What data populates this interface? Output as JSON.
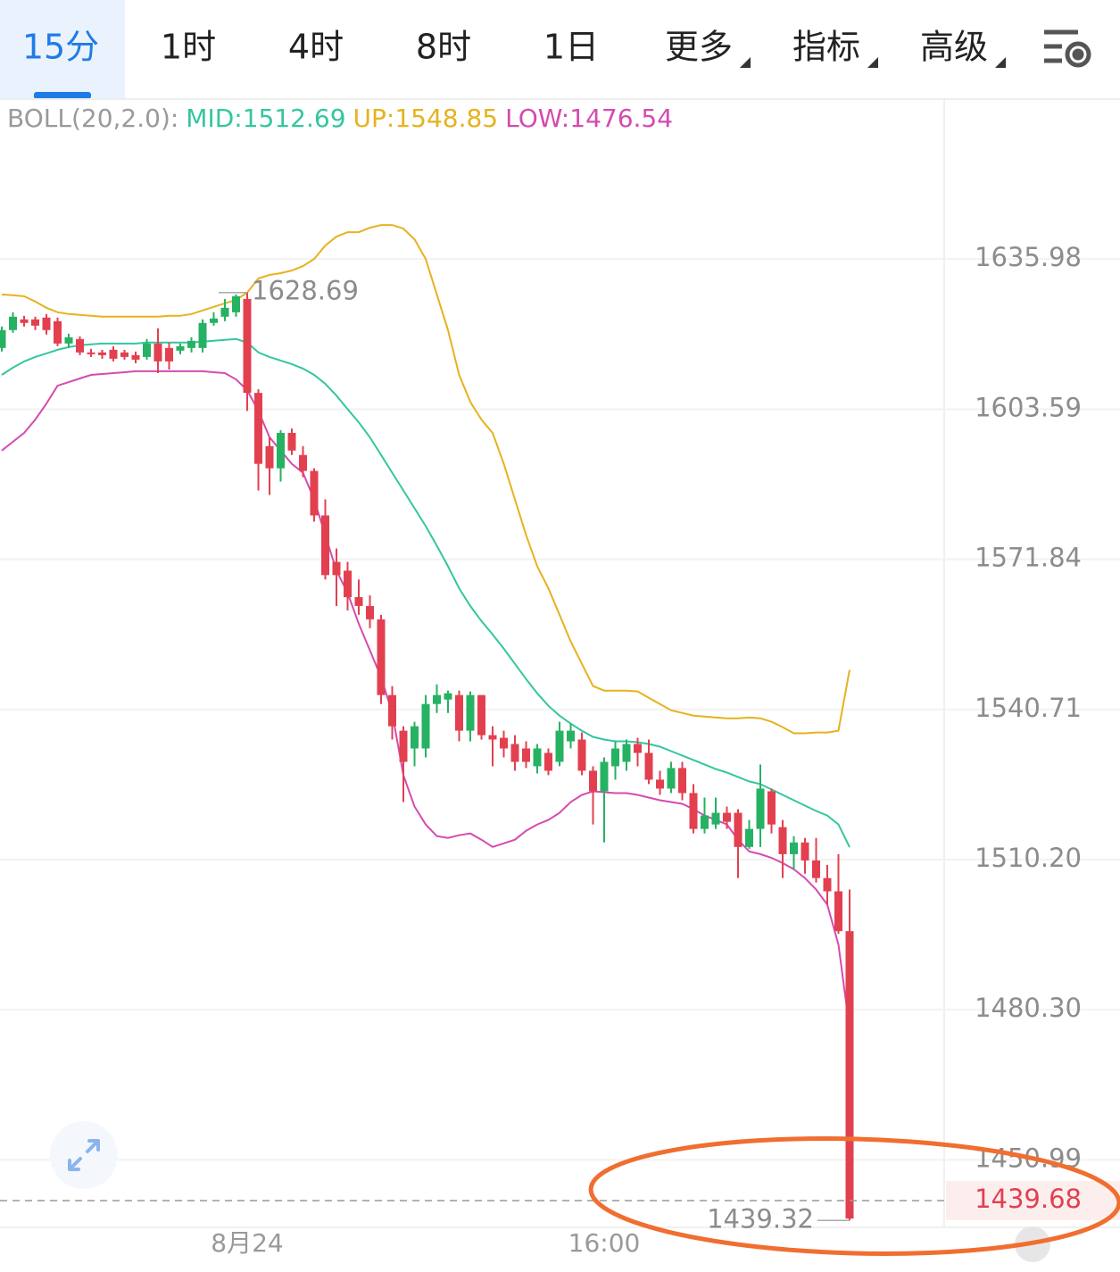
{
  "toolbar": {
    "tabs": [
      {
        "label": "15分"
      },
      {
        "label": "1时"
      },
      {
        "label": "4时"
      },
      {
        "label": "8时"
      },
      {
        "label": "1日"
      },
      {
        "label": "更多",
        "menu": true
      },
      {
        "label": "指标",
        "menu": true
      },
      {
        "label": "高级",
        "menu": true
      }
    ],
    "active": 0
  },
  "chart_data": {
    "type": "candlestick",
    "log": true,
    "grid": true,
    "ylim": [
      1438,
      1671
    ],
    "yticks": [
      1635.98,
      1603.59,
      1571.84,
      1540.71,
      {
        "value": 1510.2,
        "label": "1510.20"
      },
      {
        "value": 1480.3,
        "label": "1480.30"
      },
      1450.99
    ],
    "categories": [
      null,
      null,
      null,
      null,
      null,
      null,
      null,
      null,
      null,
      null,
      null,
      null,
      null,
      null,
      null,
      null,
      null,
      null,
      null,
      null,
      null,
      null,
      "8月24",
      null,
      null,
      null,
      null,
      null,
      null,
      null,
      null,
      null,
      null,
      null,
      null,
      null,
      null,
      null,
      null,
      null,
      null,
      null,
      null,
      null,
      null,
      null,
      null,
      null,
      null,
      null,
      null,
      null,
      null,
      null,
      "16:00",
      null,
      null,
      null,
      null,
      null,
      null,
      null,
      null,
      null,
      null,
      null,
      null,
      null,
      null,
      null,
      null,
      null,
      null,
      null,
      null,
      null,
      null
    ],
    "up_color": "#26b263",
    "down_color": "#e2404f",
    "open": [
      1616.7,
      1620.56,
      1622.87,
      1622.87,
      1623.26,
      1622.48,
      1617.66,
      1618.63,
      1615.74,
      1615.74,
      1616.31,
      1615.74,
      1615.16,
      1614.77,
      1617.66,
      1616.7,
      1616.12,
      1616.7,
      1616.7,
      1622.1,
      1623.45,
      1624.41,
      1627.3,
      1607.06,
      1595.7,
      1591.0,
      1598.52,
      1593.82,
      1590.44,
      1581.04,
      1571.29,
      1569.45,
      1563.92,
      1562.08,
      1559.31,
      1543.66,
      1536.35,
      1532.72,
      1532.72,
      1541.82,
      1542.74,
      1543.66,
      1536.35,
      1543.66,
      1535.44,
      1534.9,
      1533.63,
      1532.72,
      1529.09,
      1531.81,
      1529.99,
      1534.17,
      1534.54,
      1528.18,
      1524.0,
      1529.09,
      1529.99,
      1533.63,
      1531.81,
      1526.36,
      1524.55,
      1528.73,
      1523.64,
      1516.38,
      1517.28,
      1519.64,
      1519.64,
      1512.74,
      1516.38,
      1524.0,
      1516.74,
      1511.29,
      1513.65,
      1510.02,
      1506.49,
      1503.83,
      1495.87
    ],
    "high": [
      1621.33,
      1624.41,
      1623.64,
      1623.45,
      1624.03,
      1623.26,
      1619.79,
      1619.21,
      1616.51,
      1616.31,
      1617.09,
      1616.31,
      1615.93,
      1618.63,
      1620.94,
      1617.85,
      1617.66,
      1619.02,
      1622.87,
      1624.41,
      1627.3,
      1628.27,
      1628.69,
      1607.83,
      1597.58,
      1599.08,
      1599.46,
      1595.7,
      1591.0,
      1584.42,
      1574.09,
      1571.29,
      1567.6,
      1564.29,
      1560.24,
      1545.5,
      1537.26,
      1538.17,
      1543.66,
      1545.87,
      1544.58,
      1544.58,
      1544.4,
      1543.66,
      1537.26,
      1536.35,
      1535.44,
      1534.17,
      1533.63,
      1532.72,
      1538.17,
      1537.8,
      1535.99,
      1529.09,
      1530.9,
      1534.17,
      1534.54,
      1534.9,
      1534.54,
      1528.18,
      1529.99,
      1529.99,
      1525.46,
      1522.73,
      1522.73,
      1520.91,
      1520.37,
      1518.19,
      1529.45,
      1524.55,
      1518.19,
      1514.92,
      1514.56,
      1514.56,
      1509.14,
      1511.29,
      1504.19
    ],
    "low": [
      1615.93,
      1619.98,
      1621.33,
      1620.56,
      1619.59,
      1617.09,
      1616.7,
      1615.16,
      1614.77,
      1614.39,
      1613.81,
      1614.19,
      1613.42,
      1614.19,
      1611.3,
      1612.07,
      1615.35,
      1615.74,
      1615.74,
      1621.52,
      1622.48,
      1623.45,
      1603.21,
      1586.3,
      1585.36,
      1588.18,
      1593.82,
      1589.12,
      1579.73,
      1567.6,
      1562.08,
      1561.16,
      1560.24,
      1557.47,
      1541.82,
      1534.54,
      1521.82,
      1529.09,
      1530.9,
      1539.98,
      1539.98,
      1534.17,
      1534.17,
      1534.54,
      1529.09,
      1530.9,
      1528.18,
      1528.73,
      1527.63,
      1527.27,
      1529.09,
      1532.72,
      1527.27,
      1517.28,
      1513.65,
      1526.36,
      1528.18,
      1529.09,
      1525.46,
      1523.27,
      1523.64,
      1522.18,
      1515.47,
      1515.47,
      1516.38,
      1516.38,
      1506.49,
      1512.38,
      1512.74,
      1515.47,
      1506.49,
      1508.25,
      1507.37,
      1505.6,
      1501.18,
      1495.34,
      1439.32
    ],
    "close": [
      1620.56,
      1623.45,
      1622.1,
      1621.52,
      1620.56,
      1617.66,
      1619.02,
      1615.74,
      1615.35,
      1615.16,
      1614.39,
      1614.77,
      1614.19,
      1617.66,
      1613.81,
      1613.81,
      1617.09,
      1618.24,
      1622.1,
      1623.06,
      1625.38,
      1627.88,
      1607.06,
      1591.94,
      1591.0,
      1598.52,
      1594.76,
      1590.44,
      1581.04,
      1568.52,
      1568.52,
      1563.92,
      1562.08,
      1559.31,
      1543.66,
      1537.26,
      1529.99,
      1537.26,
      1541.82,
      1543.66,
      1544.03,
      1536.35,
      1543.66,
      1535.44,
      1534.54,
      1532.72,
      1529.99,
      1529.99,
      1532.72,
      1528.18,
      1536.35,
      1536.35,
      1528.18,
      1524.0,
      1529.99,
      1532.72,
      1533.63,
      1531.81,
      1526.36,
      1524.55,
      1528.73,
      1523.64,
      1516.38,
      1519.1,
      1519.64,
      1517.82,
      1512.74,
      1516.38,
      1524.55,
      1517.28,
      1511.29,
      1513.65,
      1510.02,
      1506.49,
      1503.83,
      1495.87,
      1439.68
    ],
    "overlay_label": "BOLL(20,2.0):",
    "overlays": [
      {
        "name": "MID:",
        "color": "#33c6a0",
        "values": [
          1610.92,
          1612.46,
          1613.81,
          1614.77,
          1615.54,
          1616.31,
          1616.89,
          1617.28,
          1617.47,
          1617.66,
          1617.66,
          1617.66,
          1617.66,
          1617.86,
          1617.86,
          1617.86,
          1617.86,
          1617.86,
          1618.05,
          1618.24,
          1618.44,
          1618.63,
          1617.86,
          1615.74,
          1614.77,
          1614.0,
          1613.23,
          1612.27,
          1610.92,
          1608.99,
          1606.48,
          1603.59,
          1600.77,
          1597.58,
          1593.82,
          1590.06,
          1586.3,
          1582.55,
          1578.79,
          1574.66,
          1570.37,
          1565.76,
          1562.08,
          1558.95,
          1556.18,
          1553.24,
          1550.1,
          1546.97,
          1544.03,
          1541.45,
          1539.44,
          1537.8,
          1536.35,
          1535.08,
          1534.54,
          1534.17,
          1534.17,
          1533.99,
          1533.63,
          1533.08,
          1532.18,
          1531.27,
          1530.36,
          1529.45,
          1528.54,
          1527.82,
          1526.91,
          1526.0,
          1525.46,
          1524.37,
          1523.27,
          1522.18,
          1521.1,
          1520.01,
          1519.1,
          1517.28,
          1512.69
        ]
      },
      {
        "name": "UP:",
        "color": "#e6b21e",
        "values": [
          1628.27,
          1628.08,
          1627.88,
          1626.73,
          1625.38,
          1624.41,
          1624.03,
          1623.83,
          1623.64,
          1623.45,
          1623.45,
          1623.45,
          1623.45,
          1623.45,
          1623.45,
          1623.64,
          1623.64,
          1624.03,
          1624.8,
          1625.57,
          1626.34,
          1627.11,
          1628.65,
          1631.74,
          1632.51,
          1632.9,
          1633.47,
          1634.44,
          1635.98,
          1638.91,
          1640.86,
          1641.83,
          1641.83,
          1642.81,
          1643.39,
          1643.39,
          1642.61,
          1640.27,
          1635.98,
          1628.27,
          1620.56,
          1610.92,
          1605.13,
          1601.34,
          1598.52,
          1591.94,
          1584.42,
          1576.91,
          1570.37,
          1565.76,
          1560.24,
          1554.71,
          1550.1,
          1545.5,
          1544.58,
          1544.58,
          1544.58,
          1544.4,
          1543.11,
          1541.82,
          1540.53,
          1539.98,
          1539.44,
          1539.26,
          1539.08,
          1538.89,
          1538.89,
          1539.08,
          1538.89,
          1538.17,
          1537.08,
          1535.81,
          1535.81,
          1535.99,
          1535.99,
          1536.35,
          1548.85
        ]
      },
      {
        "name": "LOW:",
        "color": "#d44bb0",
        "values": [
          1594.76,
          1596.64,
          1598.52,
          1601.34,
          1604.75,
          1608.6,
          1609.37,
          1610.14,
          1610.92,
          1611.11,
          1611.3,
          1611.49,
          1611.69,
          1611.69,
          1611.69,
          1611.69,
          1611.69,
          1611.69,
          1611.69,
          1611.49,
          1611.3,
          1609.95,
          1607.64,
          1603.21,
          1597.58,
          1594.76,
          1591.94,
          1590.06,
          1584.42,
          1576.91,
          1569.45,
          1564.84,
          1558.39,
          1552.87,
          1547.34,
          1539.98,
          1527.27,
          1520.92,
          1517.28,
          1514.92,
          1514.56,
          1515.1,
          1515.47,
          1514.2,
          1512.74,
          1513.47,
          1514.2,
          1516.01,
          1517.28,
          1518.19,
          1519.64,
          1521.82,
          1523.27,
          1524.0,
          1523.82,
          1523.64,
          1523.64,
          1523.27,
          1522.73,
          1522.18,
          1521.82,
          1521.46,
          1520.37,
          1519.1,
          1518.19,
          1517.28,
          1514.2,
          1511.83,
          1511.29,
          1510.56,
          1509.49,
          1508.25,
          1506.49,
          1504.19,
          1501.18,
          1493.22,
          1476.54
        ]
      }
    ]
  }
}
